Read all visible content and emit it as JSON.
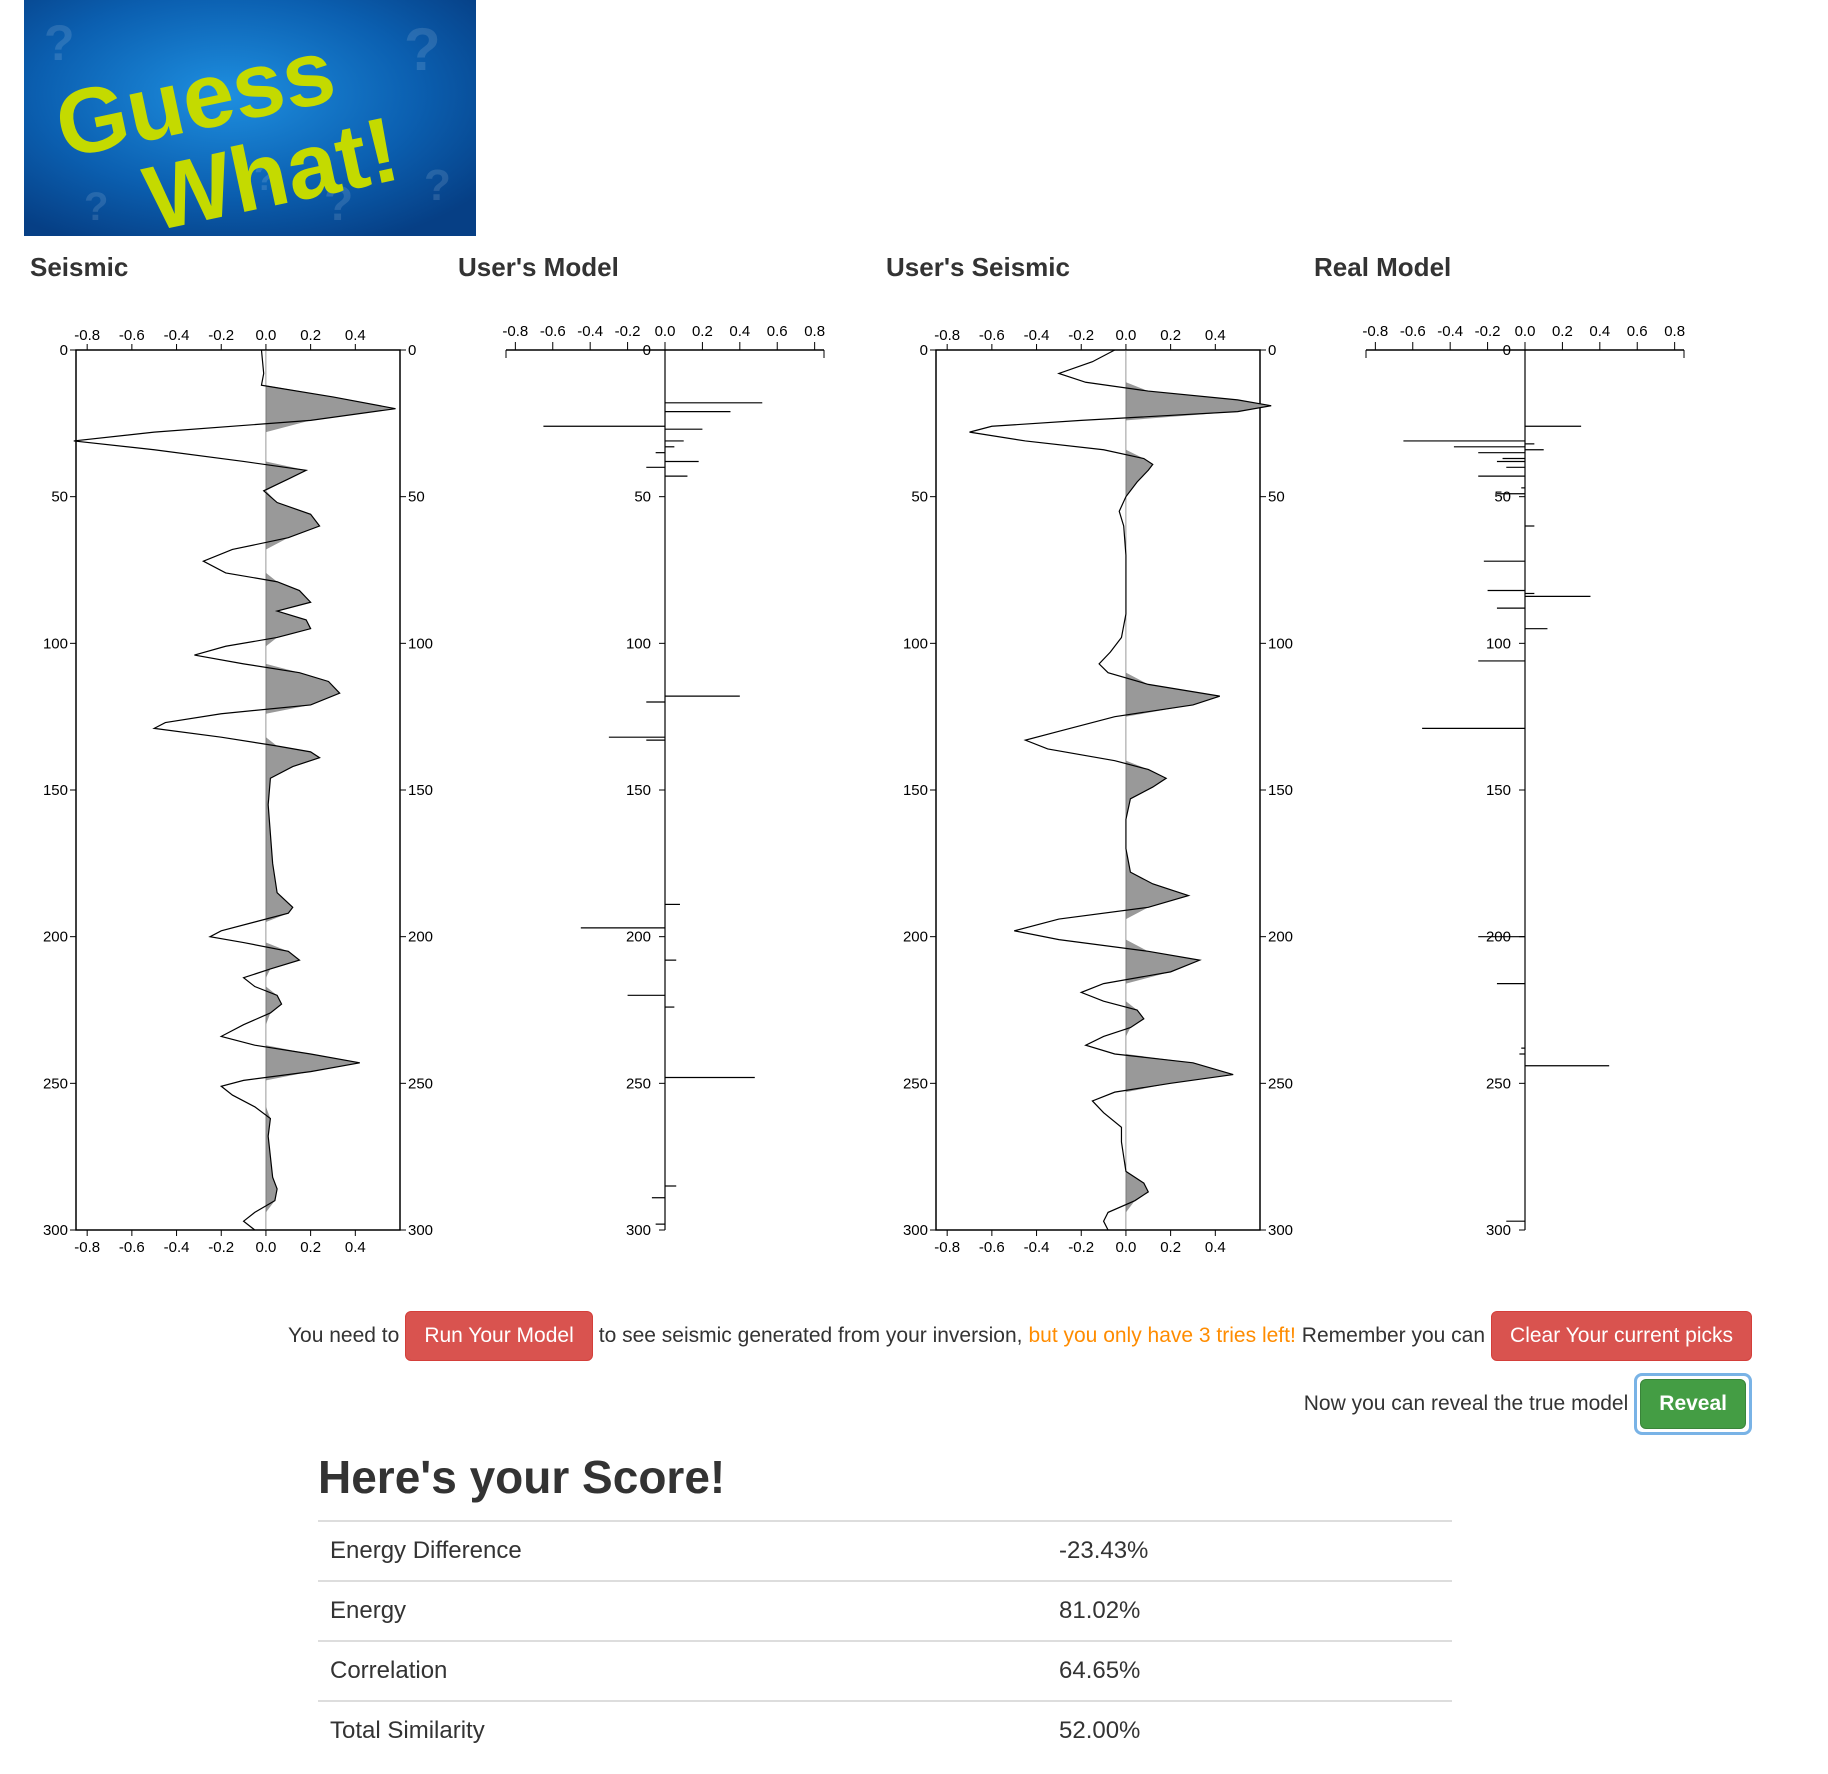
{
  "app": {
    "logo_text": [
      "Guess",
      "What!"
    ],
    "logo_colors": {
      "background": "#0b5fb0",
      "text": "#c4da00"
    }
  },
  "panels": [
    {
      "title": "Seismic"
    },
    {
      "title": "User's Model"
    },
    {
      "title": "User's Seismic"
    },
    {
      "title": "Real Model"
    }
  ],
  "axes": {
    "seismic_x_ticks": [
      "-0.8",
      "-0.6",
      "-0.4",
      "-0.2",
      "0.0",
      "0.2",
      "0.4"
    ],
    "model_x_ticks": [
      "-0.8",
      "-0.6",
      "-0.4",
      "-0.2",
      "0.0",
      "0.2",
      "0.4",
      "0.6",
      "0.8"
    ],
    "depth_ticks": [
      "0",
      "50",
      "100",
      "150",
      "200",
      "250",
      "300"
    ]
  },
  "controls": {
    "prefix": "You need to",
    "run_button": "Run Your Model",
    "middle": "to see seismic generated from your inversion,",
    "warning": "but you only have 3 tries left!",
    "remember": "Remember you can",
    "clear_button": "Clear Your current picks",
    "reveal_text": "Now you can reveal the true model",
    "reveal_button": "Reveal"
  },
  "score": {
    "title": "Here's your Score!",
    "rows": [
      {
        "label": "Energy Difference",
        "value": "-23.43%"
      },
      {
        "label": "Energy",
        "value": "81.02%"
      },
      {
        "label": "Correlation",
        "value": "64.65%"
      },
      {
        "label": "Total Similarity",
        "value": "52.00%"
      }
    ]
  },
  "chart_data": [
    {
      "type": "line",
      "name_ref": "Seismic",
      "xlim": [
        -0.85,
        0.6
      ],
      "ylim": [
        0,
        300
      ],
      "fill_positive": true,
      "points": [
        [
          0,
          -0.02
        ],
        [
          8,
          -0.01
        ],
        [
          12,
          -0.02
        ],
        [
          16,
          0.3
        ],
        [
          20,
          0.58
        ],
        [
          24,
          0.2
        ],
        [
          28,
          -0.5
        ],
        [
          31,
          -0.86
        ],
        [
          34,
          -0.5
        ],
        [
          38,
          -0.1
        ],
        [
          41,
          0.18
        ],
        [
          44,
          0.1
        ],
        [
          48,
          -0.01
        ],
        [
          52,
          0.05
        ],
        [
          56,
          0.2
        ],
        [
          60,
          0.24
        ],
        [
          64,
          0.1
        ],
        [
          68,
          -0.15
        ],
        [
          72,
          -0.28
        ],
        [
          76,
          -0.18
        ],
        [
          79,
          0.05
        ],
        [
          82,
          0.15
        ],
        [
          86,
          0.2
        ],
        [
          89,
          0.05
        ],
        [
          92,
          0.18
        ],
        [
          95,
          0.2
        ],
        [
          98,
          0.05
        ],
        [
          101,
          -0.18
        ],
        [
          104,
          -0.32
        ],
        [
          107,
          -0.1
        ],
        [
          110,
          0.15
        ],
        [
          113,
          0.28
        ],
        [
          117,
          0.33
        ],
        [
          121,
          0.2
        ],
        [
          124,
          -0.2
        ],
        [
          127,
          -0.45
        ],
        [
          129,
          -0.5
        ],
        [
          132,
          -0.2
        ],
        [
          135,
          0.05
        ],
        [
          137,
          0.2
        ],
        [
          139,
          0.24
        ],
        [
          142,
          0.12
        ],
        [
          146,
          0.02
        ],
        [
          155,
          0.01
        ],
        [
          165,
          0.02
        ],
        [
          175,
          0.03
        ],
        [
          185,
          0.05
        ],
        [
          190,
          0.12
        ],
        [
          192,
          0.1
        ],
        [
          195,
          -0.05
        ],
        [
          198,
          -0.2
        ],
        [
          200,
          -0.25
        ],
        [
          202,
          -0.1
        ],
        [
          205,
          0.1
        ],
        [
          208,
          0.15
        ],
        [
          211,
          0.02
        ],
        [
          214,
          -0.1
        ],
        [
          217,
          -0.05
        ],
        [
          220,
          0.05
        ],
        [
          223,
          0.07
        ],
        [
          226,
          0.02
        ],
        [
          230,
          -0.1
        ],
        [
          234,
          -0.2
        ],
        [
          237,
          -0.05
        ],
        [
          240,
          0.2
        ],
        [
          243,
          0.42
        ],
        [
          246,
          0.2
        ],
        [
          249,
          -0.1
        ],
        [
          251,
          -0.2
        ],
        [
          254,
          -0.15
        ],
        [
          258,
          -0.05
        ],
        [
          262,
          0.02
        ],
        [
          268,
          0.01
        ],
        [
          275,
          0.02
        ],
        [
          282,
          0.03
        ],
        [
          286,
          0.05
        ],
        [
          290,
          0.04
        ],
        [
          294,
          -0.05
        ],
        [
          297,
          -0.1
        ],
        [
          300,
          -0.05
        ]
      ]
    },
    {
      "type": "bar",
      "name_ref": "User's Model",
      "xlim": [
        -0.85,
        0.85
      ],
      "ylim": [
        0,
        300
      ],
      "spikes": [
        [
          18,
          0.52
        ],
        [
          21,
          0.35
        ],
        [
          26,
          -0.65
        ],
        [
          27,
          0.2
        ],
        [
          31,
          0.1
        ],
        [
          33,
          0.05
        ],
        [
          35,
          -0.05
        ],
        [
          38,
          0.18
        ],
        [
          40,
          -0.1
        ],
        [
          43,
          0.12
        ],
        [
          118,
          0.4
        ],
        [
          120,
          -0.1
        ],
        [
          132,
          -0.3
        ],
        [
          133,
          -0.1
        ],
        [
          189,
          0.08
        ],
        [
          197,
          -0.45
        ],
        [
          208,
          0.06
        ],
        [
          220,
          -0.2
        ],
        [
          224,
          0.05
        ],
        [
          248,
          0.48
        ],
        [
          285,
          0.06
        ],
        [
          289,
          -0.07
        ],
        [
          298,
          -0.05
        ]
      ]
    },
    {
      "type": "line",
      "name_ref": "User's Seismic",
      "xlim": [
        -0.85,
        0.6
      ],
      "ylim": [
        0,
        300
      ],
      "fill_positive": true,
      "points": [
        [
          0,
          -0.05
        ],
        [
          4,
          -0.15
        ],
        [
          8,
          -0.3
        ],
        [
          11,
          -0.18
        ],
        [
          14,
          0.1
        ],
        [
          17,
          0.5
        ],
        [
          19,
          0.65
        ],
        [
          21,
          0.5
        ],
        [
          24,
          -0.2
        ],
        [
          26,
          -0.6
        ],
        [
          28,
          -0.7
        ],
        [
          31,
          -0.45
        ],
        [
          34,
          -0.1
        ],
        [
          37,
          0.08
        ],
        [
          39,
          0.12
        ],
        [
          41,
          0.1
        ],
        [
          45,
          0.05
        ],
        [
          50,
          0.0
        ],
        [
          55,
          -0.03
        ],
        [
          60,
          -0.01
        ],
        [
          70,
          0.0
        ],
        [
          80,
          0.0
        ],
        [
          90,
          0.0
        ],
        [
          98,
          -0.02
        ],
        [
          103,
          -0.07
        ],
        [
          107,
          -0.12
        ],
        [
          110,
          -0.08
        ],
        [
          114,
          0.1
        ],
        [
          118,
          0.42
        ],
        [
          121,
          0.3
        ],
        [
          125,
          -0.05
        ],
        [
          130,
          -0.3
        ],
        [
          133,
          -0.45
        ],
        [
          136,
          -0.35
        ],
        [
          140,
          -0.05
        ],
        [
          143,
          0.1
        ],
        [
          146,
          0.18
        ],
        [
          149,
          0.12
        ],
        [
          153,
          0.02
        ],
        [
          160,
          0.0
        ],
        [
          170,
          0.0
        ],
        [
          178,
          0.02
        ],
        [
          182,
          0.12
        ],
        [
          186,
          0.28
        ],
        [
          190,
          0.1
        ],
        [
          194,
          -0.3
        ],
        [
          198,
          -0.5
        ],
        [
          201,
          -0.3
        ],
        [
          205,
          0.1
        ],
        [
          208,
          0.33
        ],
        [
          212,
          0.2
        ],
        [
          216,
          -0.1
        ],
        [
          219,
          -0.2
        ],
        [
          222,
          -0.1
        ],
        [
          225,
          0.05
        ],
        [
          228,
          0.08
        ],
        [
          231,
          0.02
        ],
        [
          234,
          -0.1
        ],
        [
          237,
          -0.18
        ],
        [
          240,
          -0.05
        ],
        [
          243,
          0.3
        ],
        [
          247,
          0.48
        ],
        [
          250,
          0.2
        ],
        [
          253,
          -0.05
        ],
        [
          256,
          -0.15
        ],
        [
          260,
          -0.1
        ],
        [
          265,
          -0.02
        ],
        [
          270,
          -0.02
        ],
        [
          275,
          -0.01
        ],
        [
          280,
          0.0
        ],
        [
          284,
          0.08
        ],
        [
          287,
          0.1
        ],
        [
          290,
          0.04
        ],
        [
          294,
          -0.08
        ],
        [
          297,
          -0.1
        ],
        [
          300,
          -0.08
        ]
      ]
    },
    {
      "type": "bar",
      "name_ref": "Real Model",
      "xlim": [
        -0.85,
        0.85
      ],
      "ylim": [
        0,
        300
      ],
      "spikes": [
        [
          26,
          0.3
        ],
        [
          31,
          -0.65
        ],
        [
          32,
          0.05
        ],
        [
          33,
          -0.38
        ],
        [
          34,
          0.1
        ],
        [
          35,
          -0.25
        ],
        [
          37,
          -0.12
        ],
        [
          38,
          -0.15
        ],
        [
          40,
          -0.1
        ],
        [
          43,
          -0.25
        ],
        [
          47,
          -0.02
        ],
        [
          49,
          -0.15
        ],
        [
          60,
          0.05
        ],
        [
          72,
          -0.22
        ],
        [
          82,
          -0.2
        ],
        [
          83,
          0.05
        ],
        [
          84,
          0.35
        ],
        [
          88,
          -0.15
        ],
        [
          95,
          0.12
        ],
        [
          106,
          -0.25
        ],
        [
          129,
          -0.55
        ],
        [
          200,
          -0.25
        ],
        [
          216,
          -0.15
        ],
        [
          238,
          -0.02
        ],
        [
          240,
          -0.03
        ],
        [
          244,
          0.45
        ],
        [
          297,
          -0.1
        ]
      ]
    }
  ]
}
